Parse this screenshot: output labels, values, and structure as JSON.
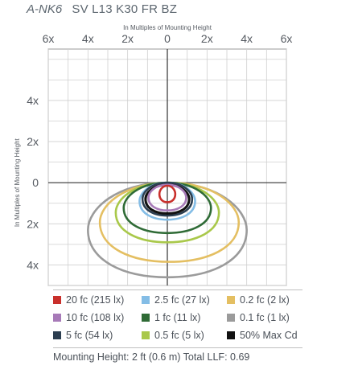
{
  "title": {
    "model": "A-NK6",
    "description": "SV L13 K30 FR BZ"
  },
  "chart_data": {
    "type": "isofootcandle",
    "xlabel": "In Multiples of Mounting Height",
    "ylabel": "In Multiples of Mounting Height",
    "xlim": [
      -6,
      6
    ],
    "ylim": [
      -5,
      6.5
    ],
    "x_ticks": [
      {
        "value": -6,
        "label": "6x"
      },
      {
        "value": -4,
        "label": "4x"
      },
      {
        "value": -2,
        "label": "2x"
      },
      {
        "value": 0,
        "label": "0"
      },
      {
        "value": 2,
        "label": "2x"
      },
      {
        "value": 4,
        "label": "4x"
      },
      {
        "value": 6,
        "label": "6x"
      }
    ],
    "y_ticks": [
      {
        "value": 4,
        "label": "4x"
      },
      {
        "value": 2,
        "label": "2x"
      },
      {
        "value": 0,
        "label": "0"
      },
      {
        "value": -2,
        "label": "2x"
      },
      {
        "value": -4,
        "label": "4x"
      }
    ],
    "grid": true,
    "series": [
      {
        "name": "0.1 fc (1 lx)",
        "color": "#9b9b9b",
        "x_left": -4.0,
        "x_right": 4.0,
        "y_top": 0.0,
        "y_bottom": -4.6
      },
      {
        "name": "0.2 fc (2 lx)",
        "color": "#e4bf62",
        "x_left": -3.4,
        "x_right": 3.6,
        "y_top": 0.0,
        "y_bottom": -3.85
      },
      {
        "name": "0.5 fc (5 lx)",
        "color": "#a9c84a",
        "x_left": -2.6,
        "x_right": 2.6,
        "y_top": 0.0,
        "y_bottom": -2.9
      },
      {
        "name": "1 fc (11 lx)",
        "color": "#2f6b36",
        "x_left": -2.2,
        "x_right": 2.2,
        "y_top": 0.0,
        "y_bottom": -2.45
      },
      {
        "name": "2.5 fc (27 lx)",
        "color": "#84bde6",
        "x_left": -1.4,
        "x_right": 1.4,
        "y_top": 0.0,
        "y_bottom": -1.8
      },
      {
        "name": "5 fc (54 lx)",
        "color": "#2c3e50",
        "x_left": -1.25,
        "x_right": 1.25,
        "y_top": 0.0,
        "y_bottom": -1.6
      },
      {
        "name": "50% Max Cd",
        "color": "#111111",
        "x_left": -1.1,
        "x_right": 1.1,
        "y_top": -0.1,
        "y_bottom": -1.5
      },
      {
        "name": "10 fc (108 lx)",
        "color": "#a77ab8",
        "x_left": -0.95,
        "x_right": 0.95,
        "y_top": -0.1,
        "y_bottom": -1.35
      },
      {
        "name": "20 fc (215 lx)",
        "color": "#c9302c",
        "x_left": -0.4,
        "x_right": 0.4,
        "y_top": -0.15,
        "y_bottom": -0.95
      }
    ],
    "legend": [
      {
        "label": "20 fc (215 lx)",
        "color": "#c9302c"
      },
      {
        "label": "2.5 fc (27 lx)",
        "color": "#84bde6"
      },
      {
        "label": "0.2 fc (2 lx)",
        "color": "#e4bf62"
      },
      {
        "label": "10 fc (108 lx)",
        "color": "#a77ab8"
      },
      {
        "label": "1 fc (11 lx)",
        "color": "#2f6b36"
      },
      {
        "label": "0.1 fc (1 lx)",
        "color": "#9b9b9b"
      },
      {
        "label": "5 fc (54 lx)",
        "color": "#2c3e50"
      },
      {
        "label": "0.5 fc (5 lx)",
        "color": "#a9c84a"
      },
      {
        "label": "50% Max Cd",
        "color": "#111111"
      }
    ]
  },
  "footer": {
    "text": "Mounting Height: 2 ft (0.6 m) Total LLF: 0.69"
  }
}
